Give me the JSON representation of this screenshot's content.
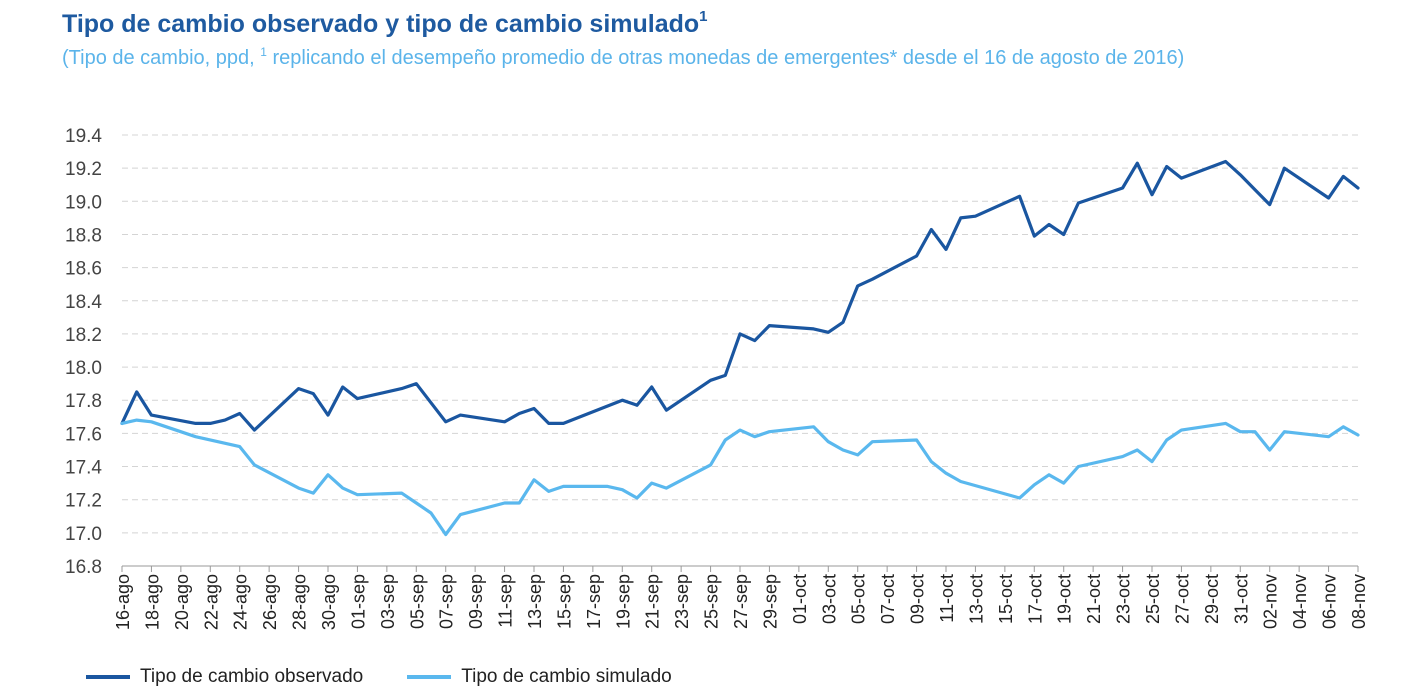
{
  "chart_data": {
    "type": "line",
    "title": "Tipo de cambio observado y tipo de cambio simulado",
    "title_sup": "1",
    "subtitle_pre": "(Tipo de cambio, ppd, ",
    "subtitle_sup": "1",
    "subtitle_post": " replicando el desempeño promedio de otras monedas de emergentes* desde el 16 de agosto de 2016)",
    "ylim": [
      16.8,
      19.4
    ],
    "yticks": [
      "16.8",
      "17.0",
      "17.2",
      "17.4",
      "17.6",
      "17.8",
      "18.0",
      "18.2",
      "18.4",
      "18.6",
      "18.8",
      "19.0",
      "19.2",
      "19.4"
    ],
    "grid": true,
    "legend_position": "bottom",
    "x_tick_labels": [
      "16-ago",
      "18-ago",
      "20-ago",
      "22-ago",
      "24-ago",
      "26-ago",
      "28-ago",
      "30-ago",
      "01-sep",
      "03-sep",
      "05-sep",
      "07-sep",
      "09-sep",
      "11-sep",
      "13-sep",
      "15-sep",
      "17-sep",
      "19-sep",
      "21-sep",
      "23-sep",
      "25-sep",
      "27-sep",
      "29-sep",
      "01-oct",
      "03-oct",
      "05-oct",
      "07-oct",
      "09-oct",
      "11-oct",
      "13-oct",
      "15-oct",
      "17-oct",
      "19-oct",
      "21-oct",
      "23-oct",
      "25-oct",
      "27-oct",
      "29-oct",
      "31-oct",
      "02-nov",
      "04-nov",
      "06-nov",
      "08-nov"
    ],
    "series": [
      {
        "name": "Tipo de cambio observado",
        "color": "#1a56a0",
        "points": [
          [
            "16-ago",
            17.66
          ],
          [
            "17-ago",
            17.85
          ],
          [
            "18-ago",
            17.71
          ],
          [
            "21-ago",
            17.66
          ],
          [
            "22-ago",
            17.66
          ],
          [
            "23-ago",
            17.68
          ],
          [
            "24-ago",
            17.72
          ],
          [
            "25-ago",
            17.62
          ],
          [
            "28-ago",
            17.87
          ],
          [
            "29-ago",
            17.84
          ],
          [
            "30-ago",
            17.71
          ],
          [
            "31-ago",
            17.88
          ],
          [
            "01-sep",
            17.81
          ],
          [
            "04-sep",
            17.87
          ],
          [
            "05-sep",
            17.9
          ],
          [
            "07-sep",
            17.67
          ],
          [
            "08-sep",
            17.71
          ],
          [
            "11-sep",
            17.67
          ],
          [
            "12-sep",
            17.72
          ],
          [
            "13-sep",
            17.75
          ],
          [
            "14-sep",
            17.66
          ],
          [
            "15-sep",
            17.66
          ],
          [
            "19-sep",
            17.8
          ],
          [
            "20-sep",
            17.77
          ],
          [
            "21-sep",
            17.88
          ],
          [
            "22-sep",
            17.74
          ],
          [
            "25-sep",
            17.92
          ],
          [
            "26-sep",
            17.95
          ],
          [
            "27-sep",
            18.2
          ],
          [
            "28-sep",
            18.16
          ],
          [
            "29-sep",
            18.25
          ],
          [
            "02-oct",
            18.23
          ],
          [
            "03-oct",
            18.21
          ],
          [
            "04-oct",
            18.27
          ],
          [
            "05-oct",
            18.49
          ],
          [
            "06-oct",
            18.53
          ],
          [
            "09-oct",
            18.67
          ],
          [
            "10-oct",
            18.83
          ],
          [
            "11-oct",
            18.71
          ],
          [
            "12-oct",
            18.9
          ],
          [
            "13-oct",
            18.91
          ],
          [
            "16-oct",
            19.03
          ],
          [
            "17-oct",
            18.79
          ],
          [
            "18-oct",
            18.86
          ],
          [
            "19-oct",
            18.8
          ],
          [
            "20-oct",
            18.99
          ],
          [
            "23-oct",
            19.08
          ],
          [
            "24-oct",
            19.23
          ],
          [
            "25-oct",
            19.04
          ],
          [
            "26-oct",
            19.21
          ],
          [
            "27-oct",
            19.14
          ],
          [
            "30-oct",
            19.24
          ],
          [
            "31-oct",
            19.16
          ],
          [
            "01-nov",
            19.07
          ],
          [
            "02-nov",
            18.98
          ],
          [
            "03-nov",
            19.2
          ],
          [
            "06-nov",
            19.02
          ],
          [
            "07-nov",
            19.15
          ],
          [
            "08-nov",
            19.08
          ]
        ]
      },
      {
        "name": "Tipo de cambio simulado",
        "color": "#5ab8ee",
        "points": [
          [
            "16-ago",
            17.66
          ],
          [
            "17-ago",
            17.68
          ],
          [
            "18-ago",
            17.67
          ],
          [
            "21-ago",
            17.58
          ],
          [
            "24-ago",
            17.52
          ],
          [
            "25-ago",
            17.41
          ],
          [
            "28-ago",
            17.27
          ],
          [
            "29-ago",
            17.24
          ],
          [
            "30-ago",
            17.35
          ],
          [
            "31-ago",
            17.27
          ],
          [
            "01-sep",
            17.23
          ],
          [
            "04-sep",
            17.24
          ],
          [
            "05-sep",
            17.18
          ],
          [
            "06-sep",
            17.12
          ],
          [
            "07-sep",
            16.99
          ],
          [
            "08-sep",
            17.11
          ],
          [
            "11-sep",
            17.18
          ],
          [
            "12-sep",
            17.18
          ],
          [
            "13-sep",
            17.32
          ],
          [
            "14-sep",
            17.25
          ],
          [
            "15-sep",
            17.28
          ],
          [
            "18-sep",
            17.28
          ],
          [
            "19-sep",
            17.26
          ],
          [
            "20-sep",
            17.21
          ],
          [
            "21-sep",
            17.3
          ],
          [
            "22-sep",
            17.27
          ],
          [
            "25-sep",
            17.41
          ],
          [
            "26-sep",
            17.56
          ],
          [
            "27-sep",
            17.62
          ],
          [
            "28-sep",
            17.58
          ],
          [
            "29-sep",
            17.61
          ],
          [
            "02-oct",
            17.64
          ],
          [
            "03-oct",
            17.55
          ],
          [
            "04-oct",
            17.5
          ],
          [
            "05-oct",
            17.47
          ],
          [
            "06-oct",
            17.55
          ],
          [
            "09-oct",
            17.56
          ],
          [
            "10-oct",
            17.43
          ],
          [
            "11-oct",
            17.36
          ],
          [
            "12-oct",
            17.31
          ],
          [
            "16-oct",
            17.21
          ],
          [
            "17-oct",
            17.29
          ],
          [
            "18-oct",
            17.35
          ],
          [
            "19-oct",
            17.3
          ],
          [
            "20-oct",
            17.4
          ],
          [
            "23-oct",
            17.46
          ],
          [
            "24-oct",
            17.5
          ],
          [
            "25-oct",
            17.43
          ],
          [
            "26-oct",
            17.56
          ],
          [
            "27-oct",
            17.62
          ],
          [
            "30-oct",
            17.66
          ],
          [
            "31-oct",
            17.61
          ],
          [
            "01-nov",
            17.61
          ],
          [
            "02-nov",
            17.5
          ],
          [
            "03-nov",
            17.61
          ],
          [
            "06-nov",
            17.58
          ],
          [
            "07-nov",
            17.64
          ],
          [
            "08-nov",
            17.59
          ]
        ]
      }
    ]
  }
}
